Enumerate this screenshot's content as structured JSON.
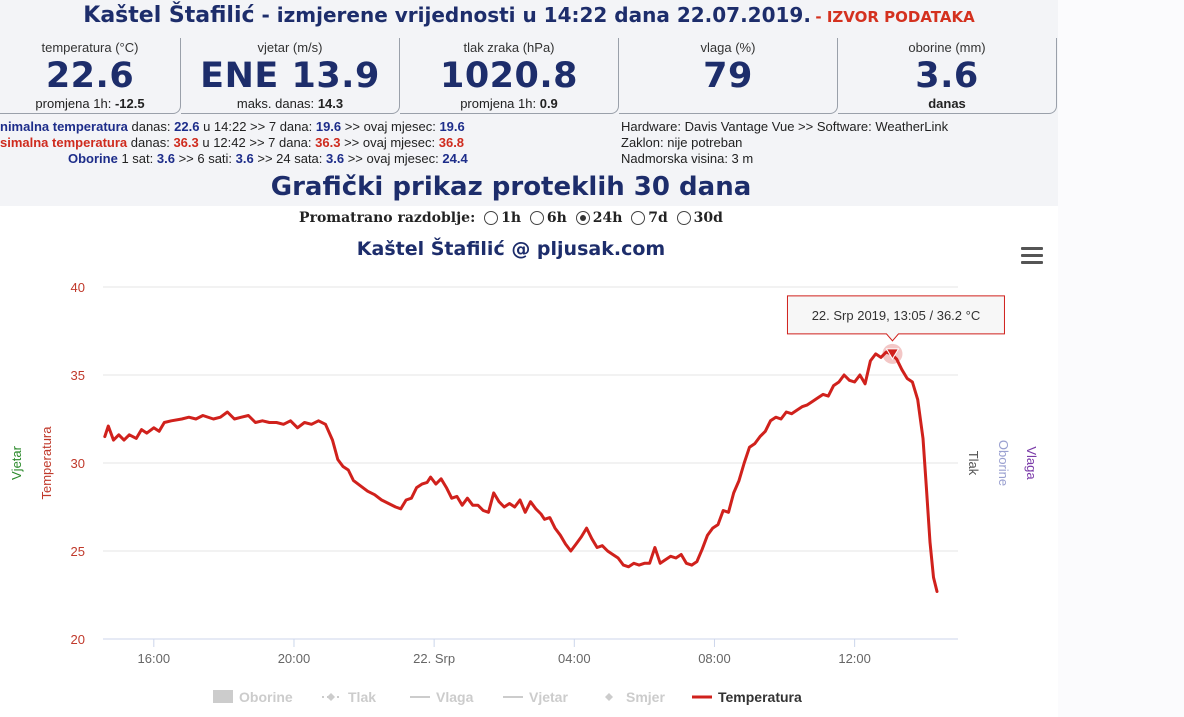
{
  "header": {
    "city": "Kaštel Štafilić",
    "title": " - izmjerene vrijednosti u 14:22 dana 22.07.2019.",
    "source_link": "- IZVOR PODATAKA"
  },
  "cards": [
    {
      "label": "temperatura (°C)",
      "value": "22.6",
      "sub_label": "promjena 1h:",
      "sub_value": "-12.5"
    },
    {
      "label": "vjetar (m/s)",
      "value": "ENE 13.9",
      "sub_label": "maks. danas:",
      "sub_value": "14.3"
    },
    {
      "label": "tlak zraka (hPa)",
      "value": "1020.8",
      "sub_label": "promjena 1h:",
      "sub_value": "0.9"
    },
    {
      "label": "vlaga (%)",
      "value": "79",
      "sub_label": "",
      "sub_value": ""
    },
    {
      "label": "oborine (mm)",
      "value": "3.6",
      "sub_label": "",
      "sub_value": "danas"
    }
  ],
  "stats": {
    "min": {
      "label": "nimalna temperatura",
      "t1": " danas: ",
      "v1": "22.6",
      "t2": " u 14:22 >> 7 dana: ",
      "v2": "19.6",
      "t3": " >> ovaj mjesec: ",
      "v3": "19.6"
    },
    "max": {
      "label": "simalna temperatura",
      "t1": " danas: ",
      "v1": "36.3",
      "t2": " u 12:42 >> 7 dana: ",
      "v2": "36.3",
      "t3": " >> ovaj mjesec: ",
      "v3": "36.8"
    },
    "rain": {
      "label": "Oborine",
      "t1": " 1 sat: ",
      "v1": "3.6",
      "t2": " >> 6 sati: ",
      "v2": "3.6",
      "t3": " >> 24 sata: ",
      "v3": "3.6",
      "t4": " >> ovaj mjesec: ",
      "v4": "24.4"
    }
  },
  "station_info": [
    "Hardware: Davis Vantage Vue >> Software: WeatherLink",
    "Zaklon: nije potreban",
    "Nadmorska visina: 3 m"
  ],
  "section_title": "Grafički prikaz proteklih 30 dana",
  "period_selector": {
    "label": "Promatrano razdoblje:",
    "options": [
      "1h",
      "6h",
      "24h",
      "7d",
      "30d"
    ],
    "selected": "24h"
  },
  "chart_menu_icon": "hamburger-menu-icon",
  "colors": {
    "temperature": "#d0211c",
    "wind_axis": "#2b8a2b",
    "pressure_axis": "#555555",
    "rain_axis": "#9aa0d0",
    "humidity_axis": "#7a3aa8",
    "title": "#1d2d6b"
  },
  "chart_data": {
    "type": "line",
    "title": "Kaštel Štafilić @ pljusak.com",
    "x_ticks": [
      "16:00",
      "20:00",
      "22. Srp",
      "04:00",
      "08:00",
      "12:00"
    ],
    "y_ticks": [
      "40",
      "35",
      "30",
      "25",
      "20"
    ],
    "ylim": [
      20,
      40
    ],
    "xlim_hours": [
      -9.45,
      14.95
    ],
    "x_unit": "hours relative to 22. Srp 00:00",
    "axis_titles": {
      "left_outer": "Vjetar",
      "left": "Temperatura",
      "right_1": "Tlak",
      "right_2": "Oborine",
      "right_3": "Vlaga"
    },
    "legend": [
      "Oborine",
      "Tlak",
      "Vlaga",
      "Vjetar",
      "Smjer",
      "Temperatura"
    ],
    "legend_active": "Temperatura",
    "tooltip": "22. Srp 2019, 13:05 / 36.2 °C",
    "highlight_point": {
      "x": 13.08,
      "y": 36.2
    },
    "series": [
      {
        "name": "Temperatura",
        "points": [
          [
            -9.4,
            31.5
          ],
          [
            -9.3,
            32.1
          ],
          [
            -9.15,
            31.3
          ],
          [
            -9.0,
            31.6
          ],
          [
            -8.85,
            31.3
          ],
          [
            -8.7,
            31.6
          ],
          [
            -8.5,
            31.4
          ],
          [
            -8.35,
            31.9
          ],
          [
            -8.2,
            31.7
          ],
          [
            -8.0,
            32.0
          ],
          [
            -7.85,
            31.8
          ],
          [
            -7.7,
            32.3
          ],
          [
            -7.5,
            32.4
          ],
          [
            -7.2,
            32.5
          ],
          [
            -7.0,
            32.6
          ],
          [
            -6.8,
            32.5
          ],
          [
            -6.6,
            32.7
          ],
          [
            -6.3,
            32.5
          ],
          [
            -6.1,
            32.6
          ],
          [
            -5.9,
            32.9
          ],
          [
            -5.7,
            32.5
          ],
          [
            -5.5,
            32.6
          ],
          [
            -5.3,
            32.7
          ],
          [
            -5.1,
            32.3
          ],
          [
            -4.9,
            32.4
          ],
          [
            -4.7,
            32.3
          ],
          [
            -4.5,
            32.3
          ],
          [
            -4.3,
            32.2
          ],
          [
            -4.1,
            32.4
          ],
          [
            -3.9,
            32.0
          ],
          [
            -3.7,
            32.3
          ],
          [
            -3.5,
            32.2
          ],
          [
            -3.3,
            32.4
          ],
          [
            -3.1,
            32.2
          ],
          [
            -2.9,
            31.3
          ],
          [
            -2.75,
            30.2
          ],
          [
            -2.6,
            29.8
          ],
          [
            -2.45,
            29.6
          ],
          [
            -2.3,
            29.0
          ],
          [
            -2.1,
            28.7
          ],
          [
            -1.9,
            28.4
          ],
          [
            -1.7,
            28.2
          ],
          [
            -1.5,
            27.9
          ],
          [
            -1.3,
            27.7
          ],
          [
            -1.1,
            27.5
          ],
          [
            -0.95,
            27.4
          ],
          [
            -0.8,
            27.9
          ],
          [
            -0.65,
            28.0
          ],
          [
            -0.5,
            28.6
          ],
          [
            -0.35,
            28.8
          ],
          [
            -0.2,
            28.9
          ],
          [
            -0.1,
            29.2
          ],
          [
            0.05,
            28.8
          ],
          [
            0.2,
            29.1
          ],
          [
            0.35,
            28.6
          ],
          [
            0.5,
            28.0
          ],
          [
            0.65,
            28.1
          ],
          [
            0.8,
            27.6
          ],
          [
            0.95,
            28.0
          ],
          [
            1.1,
            27.6
          ],
          [
            1.25,
            27.6
          ],
          [
            1.4,
            27.3
          ],
          [
            1.55,
            27.2
          ],
          [
            1.7,
            28.3
          ],
          [
            1.85,
            27.8
          ],
          [
            2.0,
            27.5
          ],
          [
            2.15,
            27.7
          ],
          [
            2.3,
            27.5
          ],
          [
            2.45,
            27.9
          ],
          [
            2.6,
            27.2
          ],
          [
            2.75,
            27.8
          ],
          [
            2.9,
            27.4
          ],
          [
            3.05,
            27.1
          ],
          [
            3.15,
            26.8
          ],
          [
            3.3,
            26.9
          ],
          [
            3.45,
            26.3
          ],
          [
            3.6,
            25.9
          ],
          [
            3.75,
            25.4
          ],
          [
            3.9,
            25.0
          ],
          [
            4.05,
            25.4
          ],
          [
            4.2,
            25.8
          ],
          [
            4.35,
            26.3
          ],
          [
            4.5,
            25.7
          ],
          [
            4.65,
            25.2
          ],
          [
            4.8,
            25.3
          ],
          [
            4.95,
            25.0
          ],
          [
            5.1,
            24.8
          ],
          [
            5.25,
            24.6
          ],
          [
            5.4,
            24.2
          ],
          [
            5.55,
            24.1
          ],
          [
            5.7,
            24.3
          ],
          [
            5.85,
            24.2
          ],
          [
            6.0,
            24.3
          ],
          [
            6.15,
            24.3
          ],
          [
            6.3,
            25.2
          ],
          [
            6.45,
            24.3
          ],
          [
            6.6,
            24.5
          ],
          [
            6.75,
            24.7
          ],
          [
            6.9,
            24.6
          ],
          [
            7.05,
            24.8
          ],
          [
            7.2,
            24.3
          ],
          [
            7.35,
            24.2
          ],
          [
            7.5,
            24.4
          ],
          [
            7.65,
            25.1
          ],
          [
            7.8,
            25.9
          ],
          [
            7.95,
            26.3
          ],
          [
            8.1,
            26.5
          ],
          [
            8.25,
            27.3
          ],
          [
            8.4,
            27.2
          ],
          [
            8.55,
            28.3
          ],
          [
            8.7,
            29.0
          ],
          [
            8.85,
            30.0
          ],
          [
            9.0,
            30.9
          ],
          [
            9.15,
            31.1
          ],
          [
            9.3,
            31.5
          ],
          [
            9.45,
            31.8
          ],
          [
            9.6,
            32.4
          ],
          [
            9.75,
            32.6
          ],
          [
            9.9,
            32.5
          ],
          [
            10.05,
            32.9
          ],
          [
            10.2,
            32.8
          ],
          [
            10.35,
            33.0
          ],
          [
            10.5,
            33.2
          ],
          [
            10.65,
            33.3
          ],
          [
            10.8,
            33.5
          ],
          [
            10.95,
            33.7
          ],
          [
            11.1,
            33.9
          ],
          [
            11.25,
            33.8
          ],
          [
            11.4,
            34.4
          ],
          [
            11.55,
            34.6
          ],
          [
            11.7,
            35.0
          ],
          [
            11.85,
            34.7
          ],
          [
            12.0,
            34.6
          ],
          [
            12.15,
            35.0
          ],
          [
            12.3,
            34.5
          ],
          [
            12.45,
            35.8
          ],
          [
            12.6,
            36.2
          ],
          [
            12.75,
            36.0
          ],
          [
            12.9,
            36.3
          ],
          [
            13.05,
            36.2
          ],
          [
            13.2,
            35.9
          ],
          [
            13.35,
            35.3
          ],
          [
            13.5,
            34.8
          ],
          [
            13.65,
            34.6
          ],
          [
            13.8,
            33.6
          ],
          [
            13.95,
            31.4
          ],
          [
            14.05,
            28.5
          ],
          [
            14.15,
            25.5
          ],
          [
            14.25,
            23.5
          ],
          [
            14.35,
            22.7
          ]
        ]
      }
    ]
  }
}
